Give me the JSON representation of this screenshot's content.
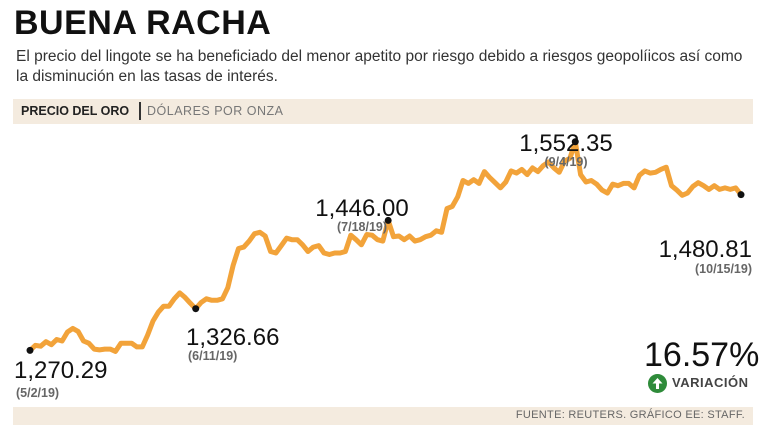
{
  "header": {
    "title": "BUENA RACHA",
    "subtitle": "El precio del lingote se ha beneficiado del menor apetito por riesgo debido a riesgos geopolíicos así como la disminución en las tasas de interés."
  },
  "chart_header": {
    "label": "PRECIO DEL ORO",
    "units": "DÓLARES POR ONZA"
  },
  "colors": {
    "line": "#f2a33a",
    "accent_bg": "#f4ebdf",
    "up": "#2e8b3a"
  },
  "chart_data": {
    "type": "line",
    "title": "PRECIO DEL ORO",
    "ylabel": "DÓLARES POR ONZA",
    "x_start": "5/2/19",
    "x_end": "10/15/19",
    "ylim": [
      1210,
      1575
    ],
    "values": [
      1270.29,
      1277,
      1276,
      1282,
      1278,
      1285,
      1283,
      1295,
      1300,
      1296,
      1283,
      1280,
      1272,
      1271,
      1272,
      1272,
      1269,
      1280,
      1280,
      1280,
      1275,
      1275,
      1291,
      1310,
      1322,
      1330,
      1330,
      1340,
      1348,
      1342,
      1334,
      1326.66,
      1335,
      1340,
      1338,
      1338,
      1340,
      1355,
      1385,
      1408,
      1410,
      1418,
      1428,
      1430,
      1425,
      1404,
      1402,
      1412,
      1422,
      1420,
      1420,
      1413,
      1404,
      1410,
      1412,
      1402,
      1400,
      1402,
      1402,
      1404,
      1426,
      1420,
      1413,
      1427,
      1426,
      1420,
      1418,
      1446.0,
      1424,
      1425,
      1420,
      1425,
      1418,
      1420,
      1424,
      1426,
      1432,
      1430,
      1462,
      1465,
      1478,
      1500,
      1496,
      1501,
      1496,
      1512,
      1504,
      1497,
      1490,
      1498,
      1513,
      1510,
      1515,
      1508,
      1517,
      1512,
      1520,
      1525,
      1517,
      1511,
      1526,
      1530,
      1552.35,
      1508,
      1498,
      1500,
      1495,
      1487,
      1483,
      1495,
      1493,
      1496,
      1496,
      1490,
      1507,
      1513,
      1510,
      1511,
      1515,
      1518,
      1493,
      1487,
      1480,
      1483,
      1492,
      1497,
      1493,
      1488,
      1493,
      1488,
      1490,
      1488,
      1490,
      1480.81
    ],
    "annotations": [
      {
        "index": 0,
        "value": "1,270.29",
        "date": "(5/2/19)"
      },
      {
        "index": 31,
        "value": "1,326.66",
        "date": "(6/11/19)"
      },
      {
        "index": 67,
        "value": "1,446.00",
        "date": "(7/18/19)"
      },
      {
        "index": 102,
        "value": "1,552.35",
        "date": "(9/4/19)"
      },
      {
        "index": 133,
        "value": "1,480.81",
        "date": "(10/15/19)"
      }
    ]
  },
  "variation": {
    "percent": "16.57%",
    "label": "VARIACIÓN"
  },
  "footer": {
    "source": "FUENTE: REUTERS. GRÁFICO EE: STAFF."
  }
}
